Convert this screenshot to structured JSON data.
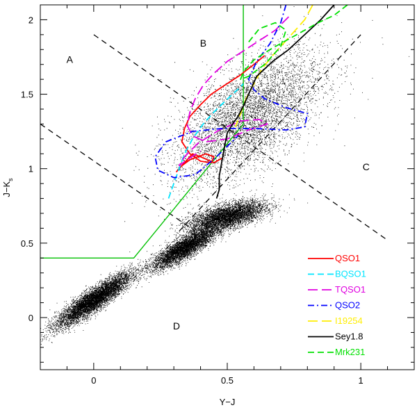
{
  "chart_data": {
    "type": "scatter",
    "xlabel": "Y−J",
    "ylabel_main": "J−K",
    "ylabel_sub": "s",
    "xlim": [
      -0.2,
      1.2
    ],
    "ylim": [
      -0.35,
      2.1
    ],
    "x_ticks": [
      {
        "value": 0,
        "label": "0"
      },
      {
        "value": 0.5,
        "label": "0.5"
      },
      {
        "value": 1,
        "label": "1"
      }
    ],
    "y_ticks": [
      {
        "value": 0,
        "label": "0"
      },
      {
        "value": 0.5,
        "label": "0.5"
      },
      {
        "value": 1,
        "label": "1"
      },
      {
        "value": 1.5,
        "label": "1.5"
      },
      {
        "value": 2,
        "label": "2"
      }
    ],
    "grid": false,
    "region_labels": [
      {
        "text": "A",
        "x": -0.09,
        "y": 1.71
      },
      {
        "text": "B",
        "x": 0.41,
        "y": 1.82
      },
      {
        "text": "C",
        "x": 1.02,
        "y": 0.99
      },
      {
        "text": "D",
        "x": 0.31,
        "y": -0.08
      }
    ],
    "dashed_boundaries": [
      {
        "x": [
          0.0,
          1.1
        ],
        "y": [
          1.9,
          0.52
        ]
      },
      {
        "x": [
          -0.2,
          0.38
        ],
        "y": [
          1.3,
          0.58
        ]
      },
      {
        "x": [
          0.32,
          1.0
        ],
        "y": [
          0.58,
          1.9
        ]
      }
    ],
    "green_boundary": {
      "x": [
        -0.2,
        0.15,
        0.56,
        0.56
      ],
      "y": [
        0.4,
        0.4,
        1.3,
        2.1
      ],
      "color": "#00c000"
    },
    "scatter_clusters": [
      {
        "cx": 0.0,
        "cy": 0.12,
        "sx": 0.07,
        "sy": 0.09,
        "rho": 0.9,
        "n": 14000
      },
      {
        "cx": 0.34,
        "cy": 0.47,
        "sx": 0.06,
        "sy": 0.07,
        "rho": 0.85,
        "n": 9000
      },
      {
        "cx": 0.5,
        "cy": 0.68,
        "sx": 0.07,
        "sy": 0.05,
        "rho": 0.6,
        "n": 5000
      },
      {
        "cx": 0.58,
        "cy": 1.35,
        "sx": 0.14,
        "sy": 0.22,
        "rho": 0.6,
        "n": 9000
      }
    ],
    "series": [
      {
        "name": "QSO1",
        "color": "#ff0000",
        "dash": "solid",
        "x": [
          0.64,
          0.6,
          0.55,
          0.49,
          0.44,
          0.4,
          0.36,
          0.34,
          0.33,
          0.36,
          0.4,
          0.44,
          0.45,
          0.42,
          0.36,
          0.33,
          0.31,
          0.34,
          0.37,
          0.4,
          0.45,
          0.48
        ],
        "y": [
          1.76,
          1.7,
          1.63,
          1.56,
          1.5,
          1.43,
          1.35,
          1.27,
          1.18,
          1.1,
          1.05,
          1.04,
          1.08,
          1.1,
          1.06,
          1.02,
          0.98,
          1.04,
          1.1,
          1.08,
          1.04,
          1.07
        ]
      },
      {
        "name": "BQSO1",
        "color": "#00e5ff",
        "dash": "dashed",
        "x": [
          0.28,
          0.3,
          0.32,
          0.34,
          0.37,
          0.41,
          0.45,
          0.49,
          0.52,
          0.55,
          0.56
        ],
        "y": [
          0.8,
          0.9,
          1.0,
          1.1,
          1.2,
          1.3,
          1.38,
          1.45,
          1.5,
          1.55,
          1.57
        ]
      },
      {
        "name": "TQSO1",
        "color": "#e000e0",
        "dash": "longdash",
        "x": [
          0.73,
          0.68,
          0.62,
          0.56,
          0.5,
          0.45,
          0.41,
          0.38,
          0.36,
          0.35,
          0.37,
          0.42,
          0.5,
          0.58,
          0.65,
          0.62,
          0.55,
          0.47,
          0.39,
          0.34,
          0.32,
          0.35,
          0.4
        ],
        "y": [
          2.02,
          1.93,
          1.86,
          1.79,
          1.72,
          1.64,
          1.56,
          1.47,
          1.38,
          1.29,
          1.22,
          1.18,
          1.2,
          1.26,
          1.3,
          1.33,
          1.32,
          1.26,
          1.17,
          1.08,
          1.02,
          1.06,
          1.12
        ]
      },
      {
        "name": "QSO2",
        "color": "#0000ff",
        "dash": "dashdot",
        "x": [
          0.72,
          0.7,
          0.66,
          0.61,
          0.58,
          0.6,
          0.64,
          0.72,
          0.8,
          0.79,
          0.72,
          0.6,
          0.48,
          0.37,
          0.27,
          0.23,
          0.24,
          0.3,
          0.38,
          0.46,
          0.54
        ],
        "y": [
          2.1,
          1.98,
          1.84,
          1.72,
          1.6,
          1.53,
          1.47,
          1.41,
          1.37,
          1.28,
          1.26,
          1.27,
          1.27,
          1.25,
          1.18,
          1.08,
          0.99,
          0.94,
          0.96,
          1.08,
          1.22
        ]
      },
      {
        "name": "I19254",
        "color": "#ffee00",
        "dash": "longdash",
        "x": [
          0.82,
          0.79,
          0.75,
          0.71,
          0.67,
          0.63,
          0.6,
          0.57,
          0.55,
          0.53
        ],
        "y": [
          2.1,
          2.0,
          1.92,
          1.84,
          1.76,
          1.67,
          1.57,
          1.47,
          1.37,
          1.28
        ]
      },
      {
        "name": "Sey1.8",
        "color": "#000000",
        "dash": "solid",
        "x": [
          0.9,
          0.85,
          0.79,
          0.73,
          0.67,
          0.61,
          0.58,
          0.56,
          0.54,
          0.52,
          0.5,
          0.49,
          0.48,
          0.47,
          0.47,
          0.46
        ],
        "y": [
          2.1,
          2.0,
          1.9,
          1.8,
          1.72,
          1.62,
          1.5,
          1.42,
          1.35,
          1.3,
          1.24,
          1.15,
          1.05,
          0.95,
          0.86,
          0.8
        ]
      },
      {
        "name": "Mrk231",
        "color": "#00e000",
        "dash": "dashed",
        "x": [
          0.95,
          0.9,
          0.84,
          0.78,
          0.72,
          0.66,
          0.6,
          0.56,
          0.55,
          0.58,
          0.64,
          0.7,
          0.72,
          0.68,
          0.62,
          0.58
        ],
        "y": [
          2.1,
          2.03,
          1.98,
          1.92,
          1.86,
          1.8,
          1.73,
          1.65,
          1.6,
          1.62,
          1.7,
          1.82,
          1.93,
          1.98,
          1.94,
          1.85
        ]
      }
    ]
  }
}
